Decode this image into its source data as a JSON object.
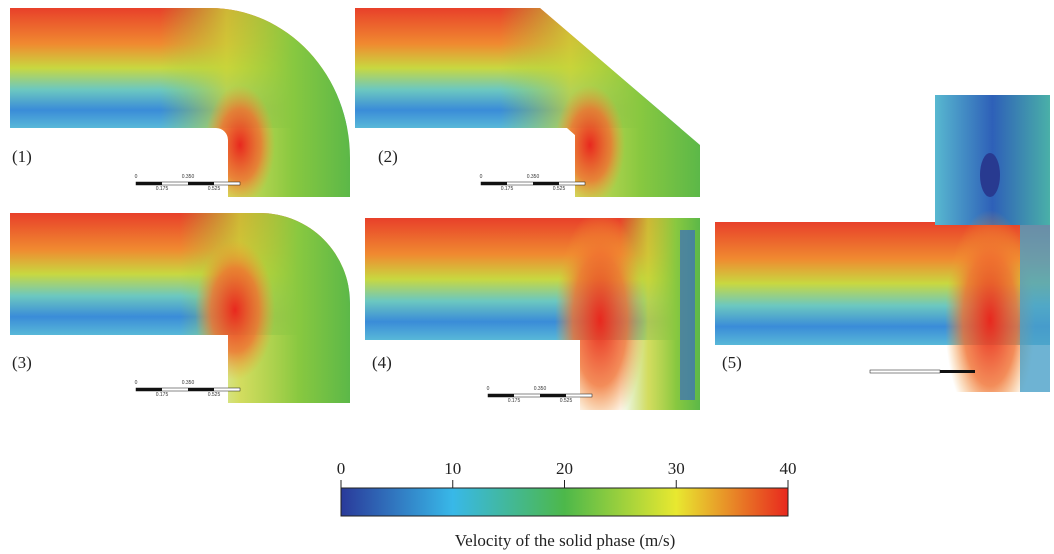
{
  "panels": [
    {
      "label": "(1)"
    },
    {
      "label": "(2)"
    },
    {
      "label": "(3)"
    },
    {
      "label": "(4)"
    },
    {
      "label": "(5)"
    }
  ],
  "scale_bar": {
    "labels": [
      "0",
      "0.350",
      "0.175",
      "0.525"
    ]
  },
  "colorbar": {
    "label": "Velocity of the solid phase (m/s)",
    "lim": [
      0,
      40
    ],
    "ticks": [
      0,
      10,
      20,
      30,
      40
    ]
  }
}
